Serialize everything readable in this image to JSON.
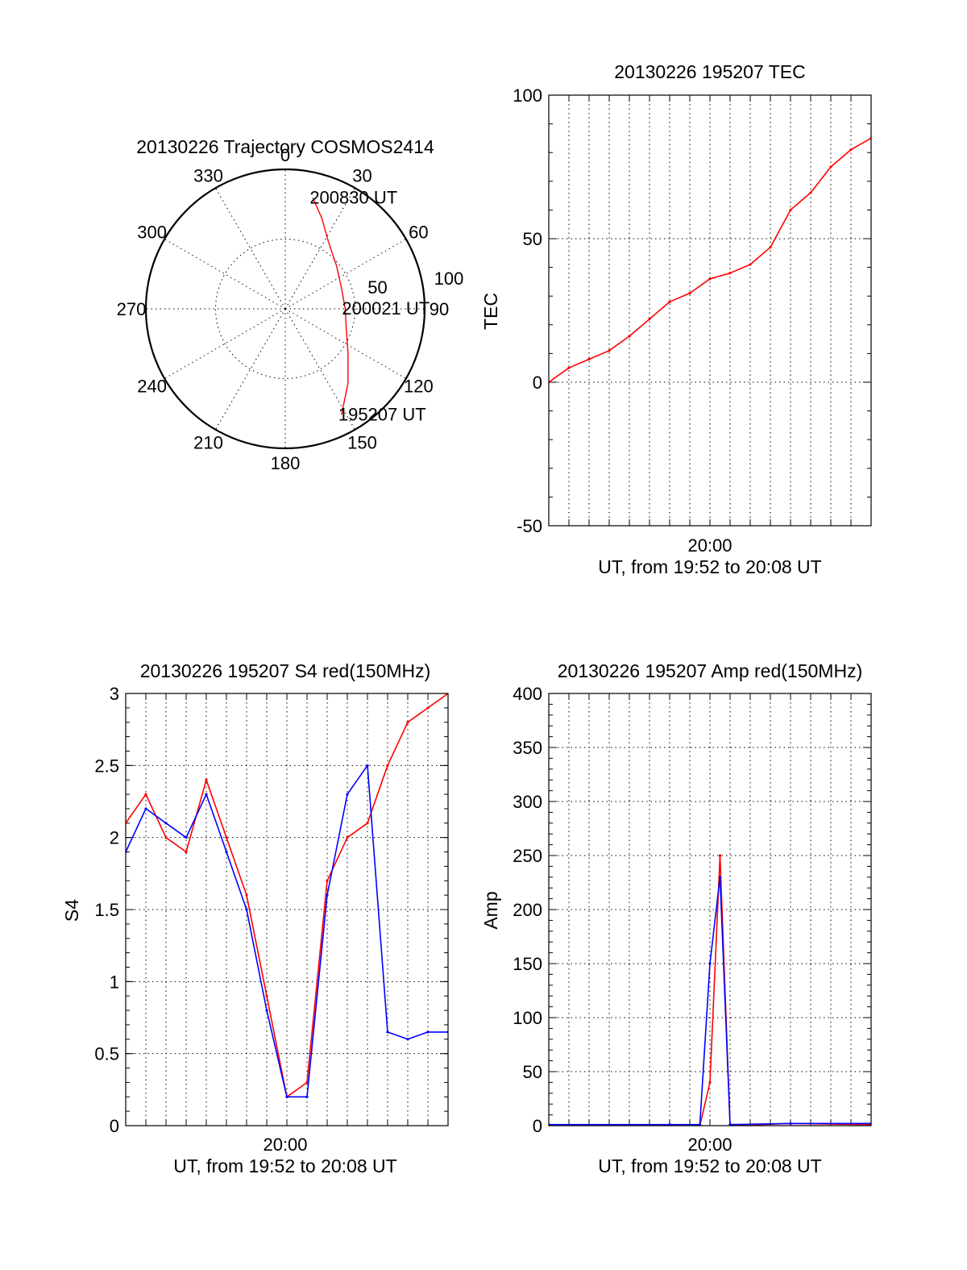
{
  "colors": {
    "red": "#ff0000",
    "blue": "#0000ff",
    "axis": "#000000"
  },
  "chart_data": [
    {
      "type": "polar",
      "title": "20130226 Trajectory COSMOS2414",
      "azimuth_labels": [
        "0",
        "30",
        "60",
        "90",
        "120",
        "150",
        "180",
        "210",
        "240",
        "270",
        "300",
        "330"
      ],
      "radial_labels": [
        "50",
        "100"
      ],
      "grid": true,
      "series": [
        {
          "color": "red",
          "points": [
            {
              "az": 14,
              "radius": 82
            },
            {
              "az": 22,
              "radius": 70
            },
            {
              "az": 33,
              "radius": 57
            },
            {
              "az": 50,
              "radius": 48
            },
            {
              "az": 70,
              "radius": 43
            },
            {
              "az": 90,
              "radius": 43
            },
            {
              "az": 108,
              "radius": 46
            },
            {
              "az": 125,
              "radius": 55
            },
            {
              "az": 140,
              "radius": 70
            },
            {
              "az": 152,
              "radius": 86
            }
          ]
        }
      ],
      "annotations": [
        {
          "text": "200830 UT",
          "az": 14,
          "radius": 82
        },
        {
          "text": "200021 UT",
          "az": 90,
          "radius": 43
        },
        {
          "text": "195207 UT",
          "az": 152,
          "radius": 86
        }
      ]
    },
    {
      "type": "line",
      "title": "20130226 195207 TEC",
      "xlabel": "UT, from 19:52 to 20:08 UT",
      "ylabel": "TEC",
      "xtick_labels": [
        "20:00"
      ],
      "ylim": [
        -50,
        100
      ],
      "yticks": [
        -50,
        0,
        50,
        100
      ],
      "grid": true,
      "series": [
        {
          "color": "red",
          "x": [
            "19:52",
            "19:53",
            "19:54",
            "19:55",
            "19:56",
            "19:57",
            "19:58",
            "19:59",
            "20:00",
            "20:01",
            "20:02",
            "20:03",
            "20:04",
            "20:05",
            "20:06",
            "20:07",
            "20:08"
          ],
          "y": [
            0,
            5,
            8,
            11,
            16,
            22,
            28,
            31,
            36,
            38,
            41,
            47,
            60,
            66,
            75,
            81,
            85
          ]
        }
      ]
    },
    {
      "type": "line",
      "title": "20130226 195207 S4 red(150MHz)",
      "xlabel": "UT, from 19:52 to 20:08 UT",
      "ylabel": "S4",
      "xtick_labels": [
        "20:00"
      ],
      "ylim": [
        0,
        3
      ],
      "yticks": [
        "0",
        "0.5",
        "1",
        "1.5",
        "2",
        "2.5",
        "3"
      ],
      "grid": true,
      "series": [
        {
          "color": "red",
          "x": [
            "19:52",
            "19:53",
            "19:54",
            "19:55",
            "19:56",
            "19:57",
            "19:58",
            "19:59",
            "20:00",
            "20:01",
            "20:02",
            "20:03",
            "20:04",
            "20:05",
            "20:06",
            "20:07",
            "20:08"
          ],
          "y": [
            2.1,
            2.3,
            2.0,
            1.9,
            2.4,
            2.0,
            1.6,
            0.9,
            0.2,
            0.3,
            1.7,
            2.0,
            2.1,
            2.5,
            2.8,
            2.9,
            3.0
          ]
        },
        {
          "color": "blue",
          "x": [
            "19:52",
            "19:53",
            "19:54",
            "19:55",
            "19:56",
            "19:57",
            "19:58",
            "19:59",
            "20:00",
            "20:01",
            "20:02",
            "20:03",
            "20:04",
            "20:05",
            "20:06",
            "20:07",
            "20:08"
          ],
          "y": [
            1.9,
            2.2,
            2.1,
            2.0,
            2.3,
            1.9,
            1.5,
            0.8,
            0.2,
            0.2,
            1.6,
            2.3,
            2.5,
            0.65,
            0.6,
            0.65,
            0.65
          ]
        }
      ]
    },
    {
      "type": "line",
      "title": "20130226 195207 Amp red(150MHz)",
      "xlabel": "UT, from 19:52 to 20:08 UT",
      "ylabel": "Amp",
      "xtick_labels": [
        "20:00"
      ],
      "ylim": [
        0,
        400
      ],
      "yticks": [
        0,
        50,
        100,
        150,
        200,
        250,
        300,
        350,
        400
      ],
      "grid": true,
      "series": [
        {
          "color": "red",
          "x": [
            "19:52",
            "19:58",
            "19:59:30",
            "20:00",
            "20:00:30",
            "20:01",
            "20:04",
            "20:08"
          ],
          "y": [
            0,
            0,
            0,
            40,
            250,
            0,
            2,
            1
          ]
        },
        {
          "color": "blue",
          "x": [
            "19:52",
            "19:58",
            "19:59:30",
            "20:00",
            "20:00:30",
            "20:01",
            "20:04",
            "20:08"
          ],
          "y": [
            1,
            1,
            1,
            150,
            230,
            1,
            2,
            2
          ]
        }
      ]
    }
  ]
}
